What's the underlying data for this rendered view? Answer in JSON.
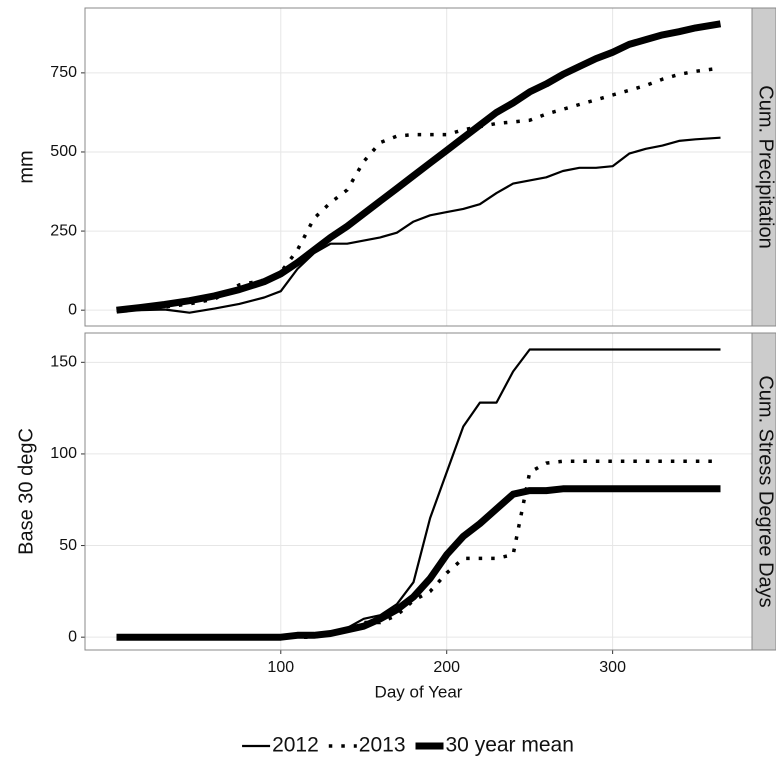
{
  "chart_data": [
    {
      "type": "line",
      "facet_label": "Cum. Precipitation",
      "ylabel": "mm",
      "x": [
        1,
        15,
        30,
        45,
        60,
        75,
        90,
        100,
        110,
        120,
        130,
        140,
        150,
        160,
        170,
        180,
        190,
        200,
        210,
        220,
        230,
        240,
        250,
        260,
        270,
        280,
        290,
        300,
        310,
        320,
        330,
        340,
        350,
        365
      ],
      "xlim": [
        -18,
        384
      ],
      "xticks": [
        100,
        200,
        300
      ],
      "ylim": [
        -50,
        955
      ],
      "yticks": [
        0,
        250,
        500,
        750
      ],
      "grid": true,
      "series": [
        {
          "name": "2012",
          "color": "#000000",
          "values": [
            0,
            0,
            2,
            -8,
            5,
            20,
            40,
            60,
            130,
            180,
            210,
            210,
            220,
            230,
            245,
            280,
            300,
            310,
            320,
            335,
            370,
            400,
            410,
            420,
            440,
            450,
            450,
            455,
            495,
            510,
            520,
            535,
            540,
            545
          ]
        },
        {
          "name": "2013",
          "color": "#000000",
          "values": [
            0,
            5,
            10,
            20,
            35,
            80,
            95,
            120,
            190,
            290,
            340,
            380,
            470,
            530,
            550,
            555,
            555,
            555,
            570,
            580,
            590,
            595,
            600,
            620,
            635,
            650,
            665,
            680,
            695,
            710,
            730,
            745,
            755,
            765
          ]
        },
        {
          "name": "30 year mean",
          "color": "#000000",
          "values": [
            0,
            8,
            18,
            30,
            45,
            65,
            90,
            115,
            150,
            190,
            230,
            265,
            305,
            345,
            385,
            425,
            465,
            505,
            545,
            585,
            625,
            655,
            690,
            715,
            745,
            770,
            795,
            815,
            840,
            855,
            870,
            880,
            892,
            905
          ]
        }
      ]
    },
    {
      "type": "line",
      "facet_label": "Cum. Stress Degree Days",
      "ylabel": "Base 30 degC",
      "xlabel": "Day of Year",
      "x": [
        1,
        15,
        30,
        45,
        60,
        75,
        90,
        100,
        110,
        120,
        130,
        140,
        150,
        160,
        170,
        180,
        190,
        200,
        210,
        220,
        230,
        240,
        250,
        260,
        270,
        280,
        290,
        300,
        310,
        320,
        330,
        340,
        350,
        365
      ],
      "xlim": [
        -18,
        384
      ],
      "xticks": [
        100,
        200,
        300
      ],
      "ylim": [
        -7,
        166
      ],
      "yticks": [
        0,
        50,
        100,
        150
      ],
      "grid": true,
      "series": [
        {
          "color": "#000000",
          "values": [
            0,
            0,
            0,
            0,
            0,
            0,
            0,
            0,
            0,
            1,
            2,
            5,
            10,
            12,
            18,
            30,
            65,
            90,
            115,
            128,
            128,
            145,
            157,
            157,
            157,
            157,
            157,
            157,
            157,
            157,
            157,
            157,
            157,
            157
          ]
        },
        {
          "color": "#000000",
          "values": [
            0,
            0,
            0,
            0,
            0,
            0,
            0,
            0,
            0,
            0,
            2,
            5,
            8,
            8,
            12,
            20,
            25,
            35,
            43,
            43,
            43,
            45,
            90,
            95,
            96,
            96,
            96,
            96,
            96,
            96,
            96,
            96,
            96,
            96
          ]
        },
        {
          "color": "#000000",
          "values": [
            0,
            0,
            0,
            0,
            0,
            0,
            0,
            0,
            1,
            1,
            2,
            4,
            6,
            10,
            15,
            22,
            32,
            45,
            55,
            62,
            70,
            78,
            80,
            80,
            81,
            81,
            81,
            81,
            81,
            81,
            81,
            81,
            81,
            81
          ]
        }
      ]
    }
  ]
}
